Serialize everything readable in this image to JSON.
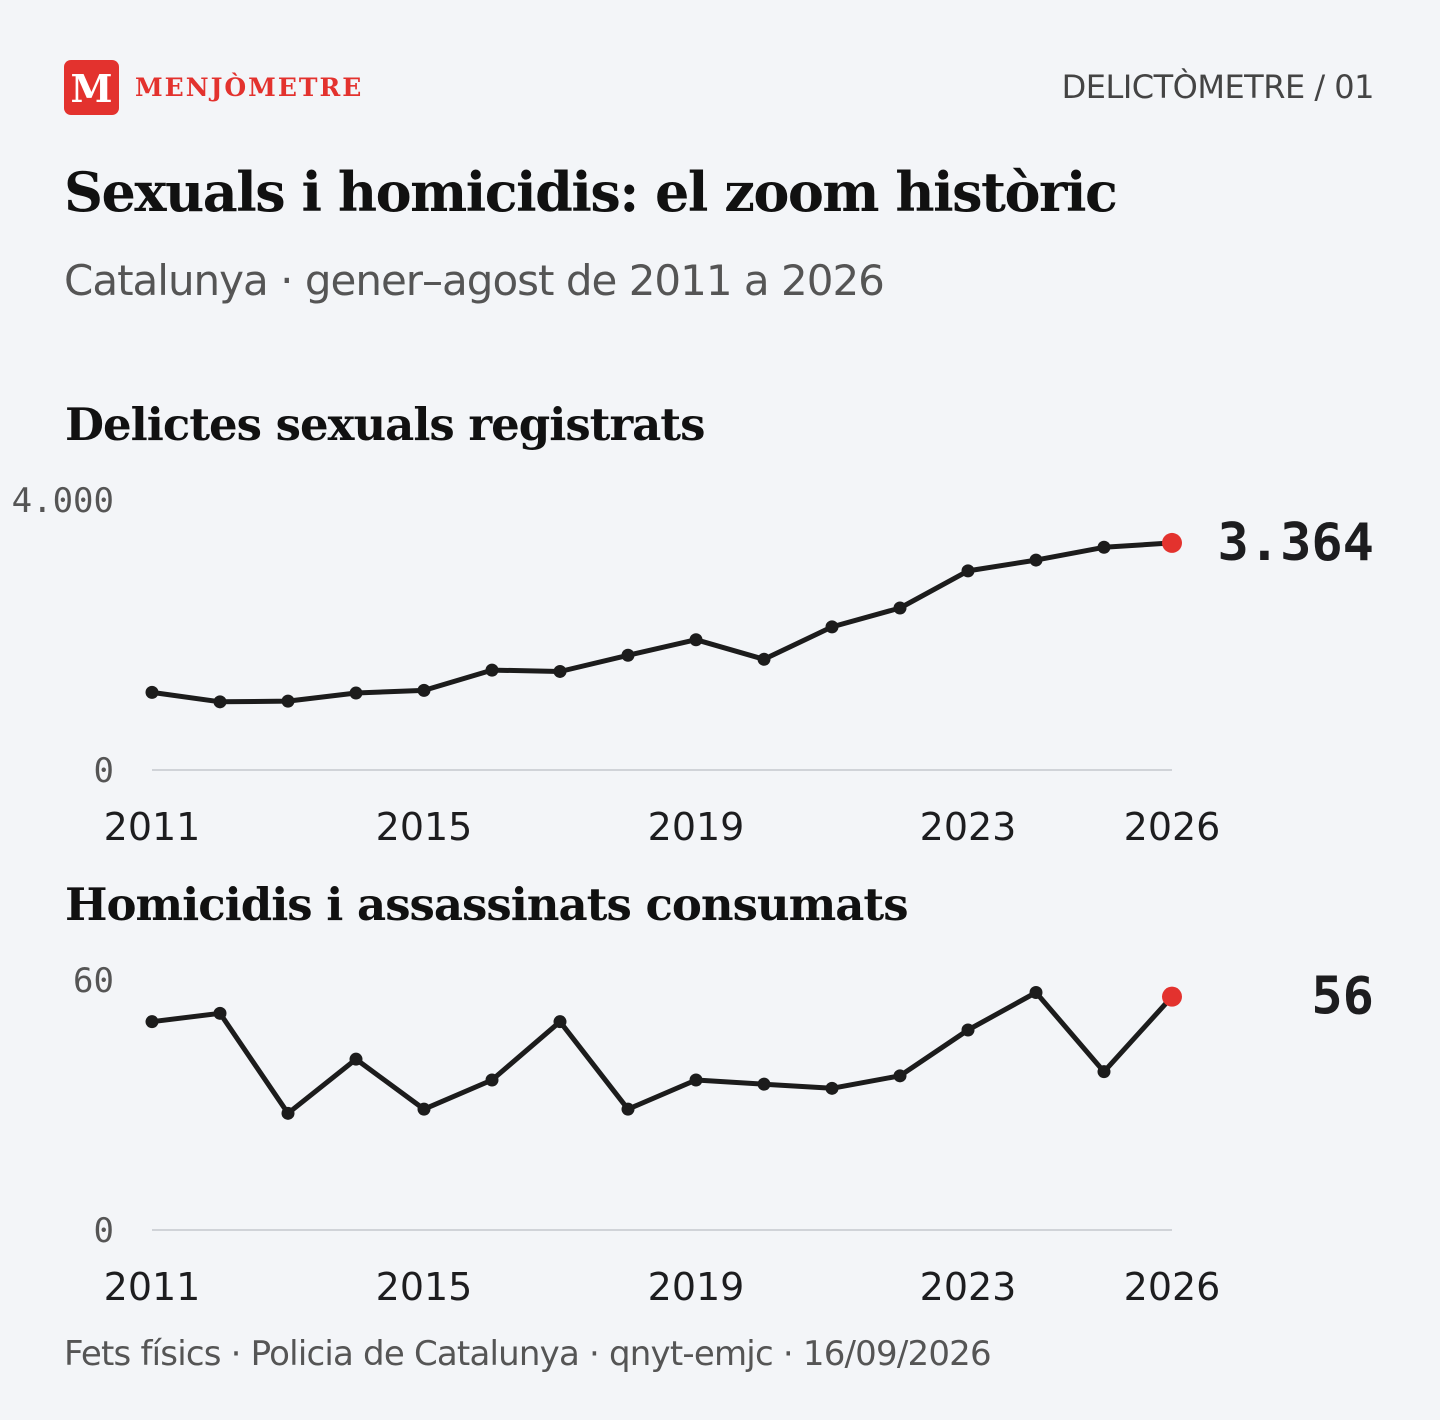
{
  "brand": {
    "mark": "M",
    "name": "MENJÒMETRE"
  },
  "series_tag": "DELICTÒMETRE / 01",
  "title": "Sexuals i homicidis: el zoom històric",
  "subtitle": "Catalunya · gener–agost de 2011 a 2026",
  "footer": "Fets físics · Policia de Catalunya · qnyt-emjc · 16/09/2026",
  "colors": {
    "accent": "#e3322e",
    "line": "#1c1c1c",
    "background": "#f3f5f8"
  },
  "chart_data": [
    {
      "type": "line",
      "title": "Delictes sexuals registrats",
      "x": [
        2011,
        2012,
        2013,
        2014,
        2015,
        2016,
        2017,
        2018,
        2019,
        2020,
        2021,
        2022,
        2023,
        2024,
        2025,
        2026
      ],
      "values": [
        1150,
        1010,
        1020,
        1140,
        1180,
        1480,
        1460,
        1700,
        1930,
        1640,
        2120,
        2400,
        2950,
        3110,
        3300,
        3364
      ],
      "ylim": [
        0,
        4000
      ],
      "y_ticks": [
        "0",
        "4.000"
      ],
      "x_ticks": [
        "2011",
        "2015",
        "2019",
        "2023",
        "2026"
      ],
      "last_value_label": "3.364",
      "grid": false
    },
    {
      "type": "line",
      "title": "Homicidis i assassinats consumats",
      "x": [
        2011,
        2012,
        2013,
        2014,
        2015,
        2016,
        2017,
        2018,
        2019,
        2020,
        2021,
        2022,
        2023,
        2024,
        2025,
        2026
      ],
      "values": [
        50,
        52,
        28,
        41,
        29,
        36,
        50,
        29,
        36,
        35,
        34,
        37,
        48,
        57,
        38,
        56
      ],
      "ylim": [
        0,
        60
      ],
      "y_ticks": [
        "0",
        "60"
      ],
      "x_ticks": [
        "2011",
        "2015",
        "2019",
        "2023",
        "2026"
      ],
      "last_value_label": "56",
      "grid": false
    }
  ]
}
